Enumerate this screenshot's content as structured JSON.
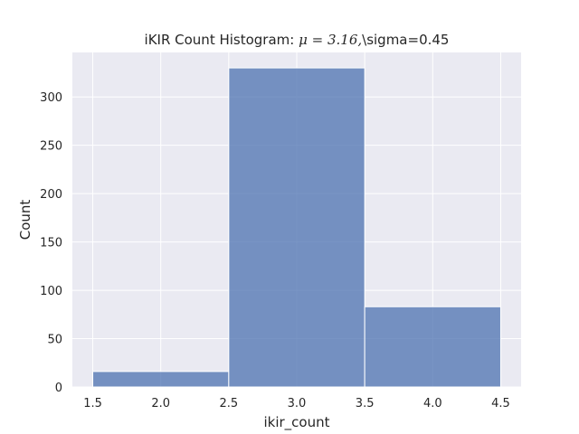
{
  "chart_data": {
    "type": "bar",
    "title": {
      "prefix": "iKIR Count Histogram: ",
      "math": "μ = 3.16,",
      "suffix": "\\sigma=0.45"
    },
    "xlabel": "ikir_count",
    "ylabel": "Count",
    "xlim": [
      1.35,
      4.65
    ],
    "ylim": [
      0,
      346
    ],
    "xticks": [
      1.5,
      2.0,
      2.5,
      3.0,
      3.5,
      4.0,
      4.5
    ],
    "xtick_labels": [
      "1.5",
      "2.0",
      "2.5",
      "3.0",
      "3.5",
      "4.0",
      "4.5"
    ],
    "yticks": [
      0,
      50,
      100,
      150,
      200,
      250,
      300
    ],
    "ytick_labels": [
      "0",
      "50",
      "100",
      "150",
      "200",
      "250",
      "300"
    ],
    "bins": [
      {
        "x0": 1.5,
        "x1": 2.5,
        "value": 16
      },
      {
        "x0": 2.5,
        "x1": 3.5,
        "value": 330
      },
      {
        "x0": 3.5,
        "x1": 4.5,
        "value": 83
      }
    ],
    "grid": true,
    "colors": {
      "background": "#eaeaf2",
      "bar": "#4c72b0",
      "grid": "#ffffff"
    }
  }
}
